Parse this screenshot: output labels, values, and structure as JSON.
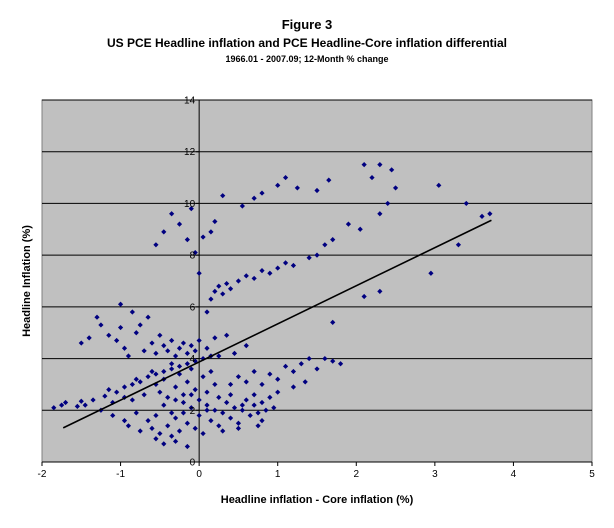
{
  "chart_data": {
    "type": "scatter",
    "title": "Figure 3",
    "subtitle": "US PCE Headline inflation and PCE Headline-Core inflation differential",
    "subtitle2": "1966.01 - 2007.09; 12-Month % change",
    "xlabel": "Headline inflation - Core inflation (%)",
    "ylabel": "Headline Inflation (%)",
    "xlim": [
      -2,
      5
    ],
    "ylim": [
      0,
      14
    ],
    "xticks": [
      "-2",
      "-1",
      "0",
      "1",
      "2",
      "3",
      "4",
      "5"
    ],
    "yticks": [
      "0",
      "2",
      "4",
      "6",
      "8",
      "10",
      "12",
      "14"
    ],
    "grid": "horizontal",
    "plot_bg": "#c0c0c0",
    "marker_color": "#000080",
    "trendline": {
      "x": [
        -1.73,
        3.72
      ],
      "y": [
        1.32,
        9.35
      ],
      "color": "#000000"
    },
    "series": [
      {
        "points": [
          [
            -1.85,
            2.1
          ],
          [
            -1.75,
            2.2
          ],
          [
            -1.7,
            2.3
          ],
          [
            -1.55,
            2.15
          ],
          [
            -1.5,
            2.35
          ],
          [
            -1.45,
            2.2
          ],
          [
            -1.35,
            2.4
          ],
          [
            -1.2,
            2.55
          ],
          [
            -1.15,
            2.8
          ],
          [
            -1.05,
            2.7
          ],
          [
            -0.95,
            2.9
          ],
          [
            -0.85,
            3.0
          ],
          [
            -0.8,
            3.2
          ],
          [
            -0.75,
            3.1
          ],
          [
            -0.65,
            3.3
          ],
          [
            -0.55,
            3.4
          ],
          [
            -0.45,
            3.5
          ],
          [
            -0.35,
            3.6
          ],
          [
            -0.25,
            3.7
          ],
          [
            -0.15,
            3.8
          ],
          [
            -0.05,
            3.9
          ],
          [
            0.05,
            4.0
          ],
          [
            0.15,
            4.1
          ],
          [
            0.25,
            4.1
          ],
          [
            -1.5,
            4.6
          ],
          [
            -1.4,
            4.8
          ],
          [
            -1.3,
            5.6
          ],
          [
            -1.25,
            5.3
          ],
          [
            -1.15,
            4.9
          ],
          [
            -1.05,
            4.7
          ],
          [
            -1.0,
            5.2
          ],
          [
            -0.95,
            4.4
          ],
          [
            -0.9,
            4.1
          ],
          [
            -0.85,
            5.8
          ],
          [
            -0.8,
            5.0
          ],
          [
            -0.75,
            5.3
          ],
          [
            -0.7,
            4.3
          ],
          [
            -0.65,
            5.6
          ],
          [
            -0.6,
            4.6
          ],
          [
            -0.55,
            4.2
          ],
          [
            -0.5,
            4.9
          ],
          [
            -0.45,
            4.5
          ],
          [
            -0.4,
            4.3
          ],
          [
            -0.35,
            4.7
          ],
          [
            -0.3,
            4.1
          ],
          [
            -0.25,
            4.4
          ],
          [
            -0.2,
            4.6
          ],
          [
            -0.15,
            4.2
          ],
          [
            -0.1,
            4.5
          ],
          [
            -0.05,
            4.3
          ],
          [
            0.0,
            4.7
          ],
          [
            0.1,
            4.4
          ],
          [
            0.2,
            4.8
          ],
          [
            -1.0,
            6.1
          ],
          [
            -0.6,
            3.5
          ],
          [
            -0.55,
            3.0
          ],
          [
            -0.5,
            2.7
          ],
          [
            -0.45,
            3.2
          ],
          [
            -0.4,
            2.5
          ],
          [
            -0.35,
            3.8
          ],
          [
            -0.3,
            2.9
          ],
          [
            -0.25,
            3.4
          ],
          [
            -0.2,
            2.6
          ],
          [
            -0.15,
            3.1
          ],
          [
            -0.1,
            3.6
          ],
          [
            -0.05,
            2.8
          ],
          [
            0.05,
            3.3
          ],
          [
            0.1,
            2.7
          ],
          [
            0.15,
            3.5
          ],
          [
            0.2,
            3.0
          ],
          [
            -1.1,
            2.3
          ],
          [
            -0.95,
            2.5
          ],
          [
            -0.85,
            2.4
          ],
          [
            -0.7,
            2.6
          ],
          [
            -0.6,
            1.3
          ],
          [
            -0.55,
            0.9
          ],
          [
            -0.5,
            1.1
          ],
          [
            -0.45,
            0.7
          ],
          [
            -0.4,
            1.4
          ],
          [
            -0.35,
            1.0
          ],
          [
            -0.3,
            1.7
          ],
          [
            -0.25,
            1.2
          ],
          [
            -0.2,
            1.9
          ],
          [
            -0.15,
            1.5
          ],
          [
            -0.1,
            2.1
          ],
          [
            -0.05,
            1.3
          ],
          [
            0.0,
            1.8
          ],
          [
            0.05,
            1.1
          ],
          [
            0.1,
            2.2
          ],
          [
            0.15,
            1.6
          ],
          [
            0.2,
            2.0
          ],
          [
            0.25,
            1.4
          ],
          [
            0.3,
            1.9
          ],
          [
            0.35,
            2.3
          ],
          [
            0.4,
            1.7
          ],
          [
            0.45,
            2.1
          ],
          [
            0.5,
            1.5
          ],
          [
            0.55,
            2.0
          ],
          [
            0.6,
            2.4
          ],
          [
            0.65,
            1.8
          ],
          [
            0.7,
            2.2
          ],
          [
            0.75,
            1.9
          ],
          [
            0.8,
            2.3
          ],
          [
            0.85,
            2.0
          ],
          [
            0.9,
            2.5
          ],
          [
            0.95,
            2.1
          ],
          [
            -0.9,
            1.4
          ],
          [
            -0.75,
            1.2
          ],
          [
            -0.65,
            1.6
          ],
          [
            -0.55,
            1.8
          ],
          [
            -0.45,
            2.2
          ],
          [
            -0.35,
            1.9
          ],
          [
            -0.3,
            2.4
          ],
          [
            -0.2,
            2.3
          ],
          [
            -0.1,
            2.6
          ],
          [
            0.0,
            2.4
          ],
          [
            0.1,
            2.0
          ],
          [
            0.25,
            2.5
          ],
          [
            0.4,
            2.6
          ],
          [
            0.55,
            2.2
          ],
          [
            0.7,
            2.6
          ],
          [
            0.8,
            1.6
          ],
          [
            0.4,
            3.0
          ],
          [
            0.5,
            3.3
          ],
          [
            0.6,
            3.1
          ],
          [
            0.7,
            3.5
          ],
          [
            0.8,
            3.0
          ],
          [
            0.9,
            3.4
          ],
          [
            1.0,
            3.2
          ],
          [
            1.1,
            3.7
          ],
          [
            1.2,
            3.5
          ],
          [
            1.3,
            3.8
          ],
          [
            1.4,
            4.0
          ],
          [
            1.5,
            3.6
          ],
          [
            1.7,
            3.9
          ],
          [
            0.45,
            4.2
          ],
          [
            0.6,
            4.5
          ],
          [
            0.35,
            4.9
          ],
          [
            0.1,
            5.8
          ],
          [
            0.15,
            6.3
          ],
          [
            0.2,
            6.6
          ],
          [
            0.25,
            6.8
          ],
          [
            0.3,
            6.5
          ],
          [
            0.35,
            6.9
          ],
          [
            0.4,
            6.7
          ],
          [
            0.5,
            7.0
          ],
          [
            0.6,
            7.2
          ],
          [
            0.7,
            7.1
          ],
          [
            0.8,
            7.4
          ],
          [
            0.9,
            7.3
          ],
          [
            1.0,
            7.5
          ],
          [
            1.1,
            7.7
          ],
          [
            1.2,
            7.6
          ],
          [
            1.4,
            7.9
          ],
          [
            1.5,
            8.0
          ],
          [
            1.6,
            8.4
          ],
          [
            1.7,
            8.6
          ],
          [
            0.0,
            7.3
          ],
          [
            -0.55,
            8.4
          ],
          [
            -0.45,
            8.9
          ],
          [
            -0.35,
            9.6
          ],
          [
            -0.25,
            9.2
          ],
          [
            -0.15,
            8.6
          ],
          [
            -0.05,
            8.1
          ],
          [
            -0.1,
            9.8
          ],
          [
            0.05,
            8.7
          ],
          [
            0.15,
            8.9
          ],
          [
            0.2,
            9.3
          ],
          [
            0.3,
            10.3
          ],
          [
            0.55,
            9.9
          ],
          [
            0.7,
            10.2
          ],
          [
            0.8,
            10.4
          ],
          [
            1.0,
            10.7
          ],
          [
            1.1,
            11.0
          ],
          [
            1.25,
            10.6
          ],
          [
            1.5,
            10.5
          ],
          [
            1.65,
            10.9
          ],
          [
            2.1,
            11.5
          ],
          [
            2.2,
            11.0
          ],
          [
            2.3,
            11.5
          ],
          [
            2.45,
            11.3
          ],
          [
            2.5,
            10.6
          ],
          [
            2.4,
            10.0
          ],
          [
            2.3,
            9.6
          ],
          [
            2.05,
            9.0
          ],
          [
            1.9,
            9.2
          ],
          [
            3.05,
            10.7
          ],
          [
            3.4,
            10.0
          ],
          [
            3.6,
            9.5
          ],
          [
            3.7,
            9.6
          ],
          [
            3.3,
            8.4
          ],
          [
            2.95,
            7.3
          ],
          [
            2.1,
            6.4
          ],
          [
            2.3,
            6.6
          ],
          [
            1.7,
            5.4
          ],
          [
            1.6,
            4.0
          ],
          [
            1.8,
            3.8
          ],
          [
            -1.25,
            2.0
          ],
          [
            -1.1,
            1.8
          ],
          [
            -0.95,
            1.6
          ],
          [
            -0.8,
            1.9
          ],
          [
            -0.3,
            0.8
          ],
          [
            -0.15,
            0.6
          ],
          [
            0.3,
            1.2
          ],
          [
            0.5,
            1.3
          ],
          [
            0.75,
            1.4
          ],
          [
            1.0,
            2.7
          ],
          [
            1.2,
            2.9
          ],
          [
            1.35,
            3.1
          ]
        ]
      }
    ]
  }
}
